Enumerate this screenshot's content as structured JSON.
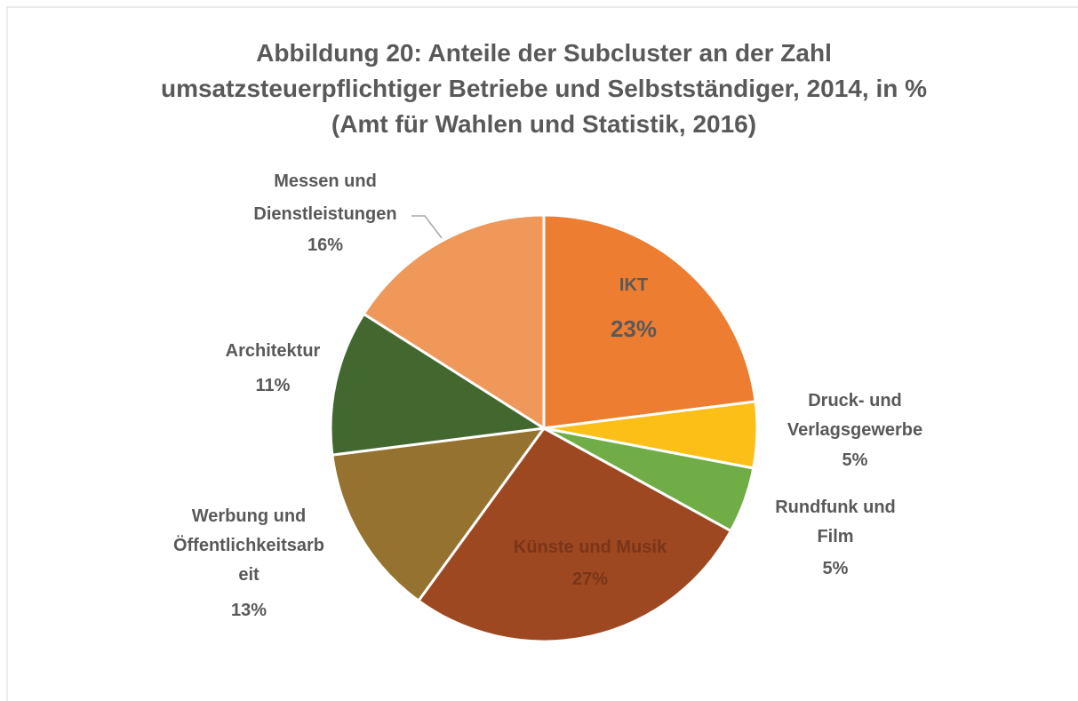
{
  "chart_data": {
    "type": "pie",
    "title": "Abbildung 20: Anteile der Subcluster an der Zahl\numsatzsteuerpflichtiger Betriebe und Selbstständiger, 2014, in %\n(Amt für Wahlen und Statistik, 2016)",
    "categories": [
      "IKT",
      "Druck- und\nVerlagsgewerbe",
      "Rundfunk und\nFilm",
      "Künste und Musik",
      "Werbung und\nÖffentlichkeitsarb\neit",
      "Architektur",
      "Messen und\nDienstleistungen"
    ],
    "values": [
      23,
      5,
      5,
      27,
      13,
      11,
      16
    ],
    "value_labels": [
      "23%",
      "5%",
      "5%",
      "27%",
      "13%",
      "11%",
      "16%"
    ],
    "colors": [
      "#ed7d31",
      "#fcbf17",
      "#70ad47",
      "#9e4822",
      "#95722f",
      "#43682f",
      "#f0975a"
    ]
  }
}
